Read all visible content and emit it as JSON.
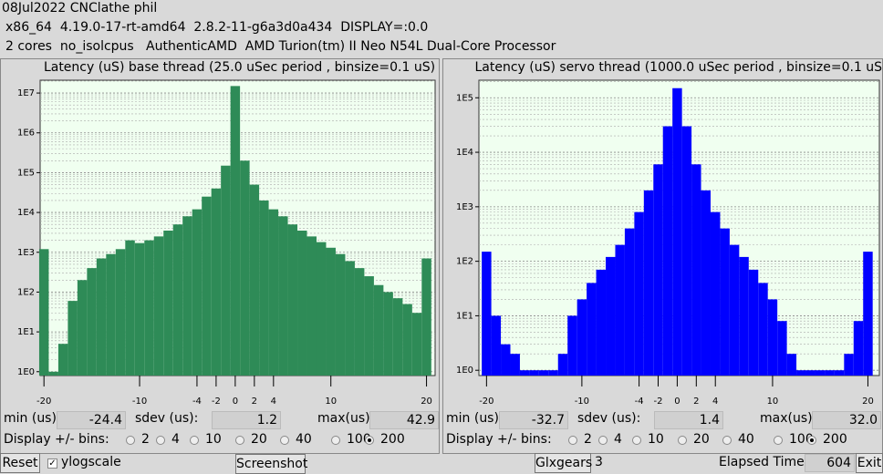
{
  "header": {
    "date_line": "08Jul2022 CNClathe phil",
    "system_line": "x86_64  4.19.0-17-rt-amd64  2.8.2-11-g6a3d0a434  DISPLAY=:0.0",
    "cpu_line": "2 cores  no_isolcpus   AuthenticAMD  AMD Turion(tm) II Neo N54L Dual-Core Processor"
  },
  "panels": [
    {
      "title": "Latency (uS) base thread (25.0 uSec period , binsize=0.1 uS)",
      "chart": {
        "type": "bar",
        "log_y": true,
        "color": "#2e8b57",
        "x": [
          -20,
          -19,
          -18,
          -17,
          -16,
          -15,
          -14,
          -13,
          -12,
          -11,
          -10,
          -9,
          -8,
          -7,
          -6,
          -5,
          -4,
          -3,
          -2,
          -1,
          0,
          1,
          2,
          3,
          4,
          5,
          6,
          7,
          8,
          9,
          10,
          11,
          12,
          13,
          14,
          15,
          16,
          17,
          18,
          19,
          20
        ],
        "values": [
          1200,
          1,
          5,
          60,
          200,
          400,
          700,
          900,
          1200,
          2000,
          1700,
          2000,
          2500,
          3500,
          5000,
          8000,
          12000,
          25000,
          40000,
          150000,
          15000000,
          200000,
          50000,
          20000,
          12000,
          8000,
          5000,
          3500,
          2500,
          1800,
          1300,
          900,
          600,
          400,
          250,
          150,
          100,
          70,
          50,
          30,
          700
        ],
        "xlim": [
          -20.4,
          20.9
        ],
        "xticks": [
          -20,
          -10,
          -4,
          -2,
          0,
          2,
          4,
          10,
          20
        ],
        "ylim": [
          0.8,
          21000000
        ],
        "yticks": [
          {
            "value": 1,
            "label": "1E0"
          },
          {
            "value": 10,
            "label": "1E1"
          },
          {
            "value": 100,
            "label": "1E2"
          },
          {
            "value": 1000,
            "label": "1E3"
          },
          {
            "value": 10000,
            "label": "1E4"
          },
          {
            "value": 100000,
            "label": "1E5"
          },
          {
            "value": 1000000,
            "label": "1E6"
          },
          {
            "value": 10000000,
            "label": "1E7"
          }
        ]
      },
      "stats": {
        "min_label": "min (us)",
        "min": "-24.4",
        "sdev_label": "sdev (us):",
        "sdev": "1.2",
        "max_label": "max(us)",
        "max": "42.9"
      },
      "bins_label": "Display +/- bins:",
      "bin_options": [
        "2",
        "4",
        "10",
        "20",
        "40",
        "100",
        "200"
      ],
      "selected_bin": "200"
    },
    {
      "title": "Latency (uS) servo thread (1000.0 uSec period , binsize=0.1 uS)",
      "chart": {
        "type": "bar",
        "log_y": true,
        "color": "#0000ff",
        "x": [
          -20,
          -19,
          -18,
          -17,
          -16,
          -15,
          -14,
          -13,
          -12,
          -11,
          -10,
          -9,
          -8,
          -7,
          -6,
          -5,
          -4,
          -3,
          -2,
          -1,
          0,
          1,
          2,
          3,
          4,
          5,
          6,
          7,
          8,
          9,
          10,
          11,
          12,
          13,
          14,
          15,
          16,
          17,
          18,
          19,
          20
        ],
        "values": [
          150,
          10,
          3,
          2,
          1,
          1,
          1,
          1,
          2,
          10,
          20,
          40,
          70,
          120,
          200,
          400,
          800,
          2000,
          6000,
          30000,
          150000,
          30000,
          6000,
          2000,
          800,
          400,
          200,
          120,
          70,
          40,
          20,
          8,
          2,
          1,
          1,
          1,
          1,
          1,
          2,
          8,
          150
        ],
        "xlim": [
          -20.8,
          21.2
        ],
        "xticks": [
          -20,
          -10,
          -4,
          -2,
          0,
          2,
          4,
          10,
          20
        ],
        "ylim": [
          0.8,
          210000
        ],
        "yticks": [
          {
            "value": 1,
            "label": "1E0"
          },
          {
            "value": 10,
            "label": "1E1"
          },
          {
            "value": 100,
            "label": "1E2"
          },
          {
            "value": 1000,
            "label": "1E3"
          },
          {
            "value": 10000,
            "label": "1E4"
          },
          {
            "value": 100000,
            "label": "1E5"
          }
        ]
      },
      "stats": {
        "min_label": "min (us)",
        "min": "-32.7",
        "sdev_label": "sdev (us):",
        "sdev": "1.4",
        "max_label": "max(us)",
        "max": "32.0"
      },
      "bins_label": "Display +/- bins:",
      "bin_options": [
        "2",
        "4",
        "10",
        "20",
        "40",
        "100",
        "200"
      ],
      "selected_bin": "200"
    }
  ],
  "footer": {
    "reset": "Reset",
    "ylogscale": "ylogscale",
    "screenshot": "Screenshot",
    "glxgears": "Glxgears",
    "glxgears_count": "3",
    "elapsed_label": "Elapsed Time:",
    "elapsed": "604",
    "exit": "Exit"
  }
}
